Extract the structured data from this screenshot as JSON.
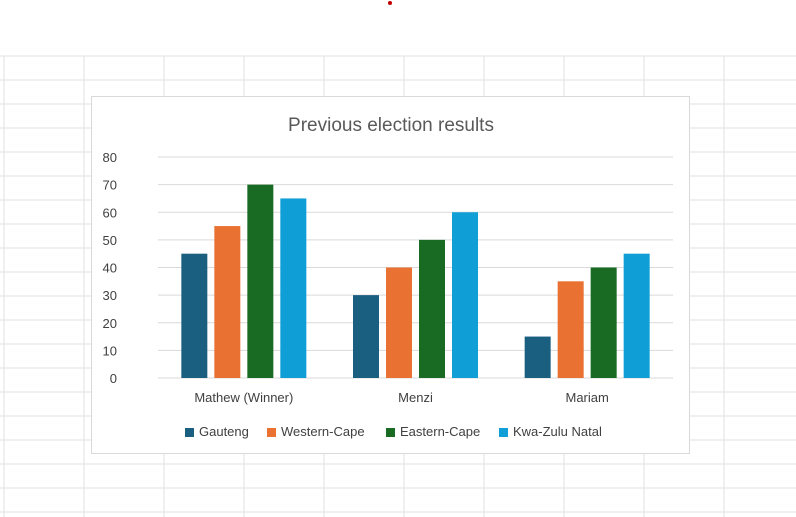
{
  "colors": {
    "gridline": "#d9d9d9",
    "sheet_grid": "#e1e1e1",
    "marker": "#c00000"
  },
  "chart_data": {
    "type": "bar",
    "title": "Previous election results",
    "xlabel": "",
    "ylabel": "",
    "categories": [
      "Mathew (Winner)",
      "Menzi",
      "Mariam"
    ],
    "series": [
      {
        "name": "Gauteng",
        "color": "#1a5e80",
        "values": [
          45,
          30,
          15
        ]
      },
      {
        "name": "Western-Cape",
        "color": "#e97132",
        "values": [
          55,
          40,
          35
        ]
      },
      {
        "name": "Eastern-Cape",
        "color": "#196b24",
        "values": [
          70,
          50,
          40
        ]
      },
      {
        "name": "Kwa-Zulu Natal",
        "color": "#0f9ed5",
        "values": [
          65,
          60,
          45
        ]
      }
    ],
    "ylim": [
      0,
      80
    ],
    "yticks": [
      "0",
      "10",
      "20",
      "30",
      "40",
      "50",
      "60",
      "70",
      "80"
    ],
    "grid": true,
    "legend_position": "bottom"
  }
}
